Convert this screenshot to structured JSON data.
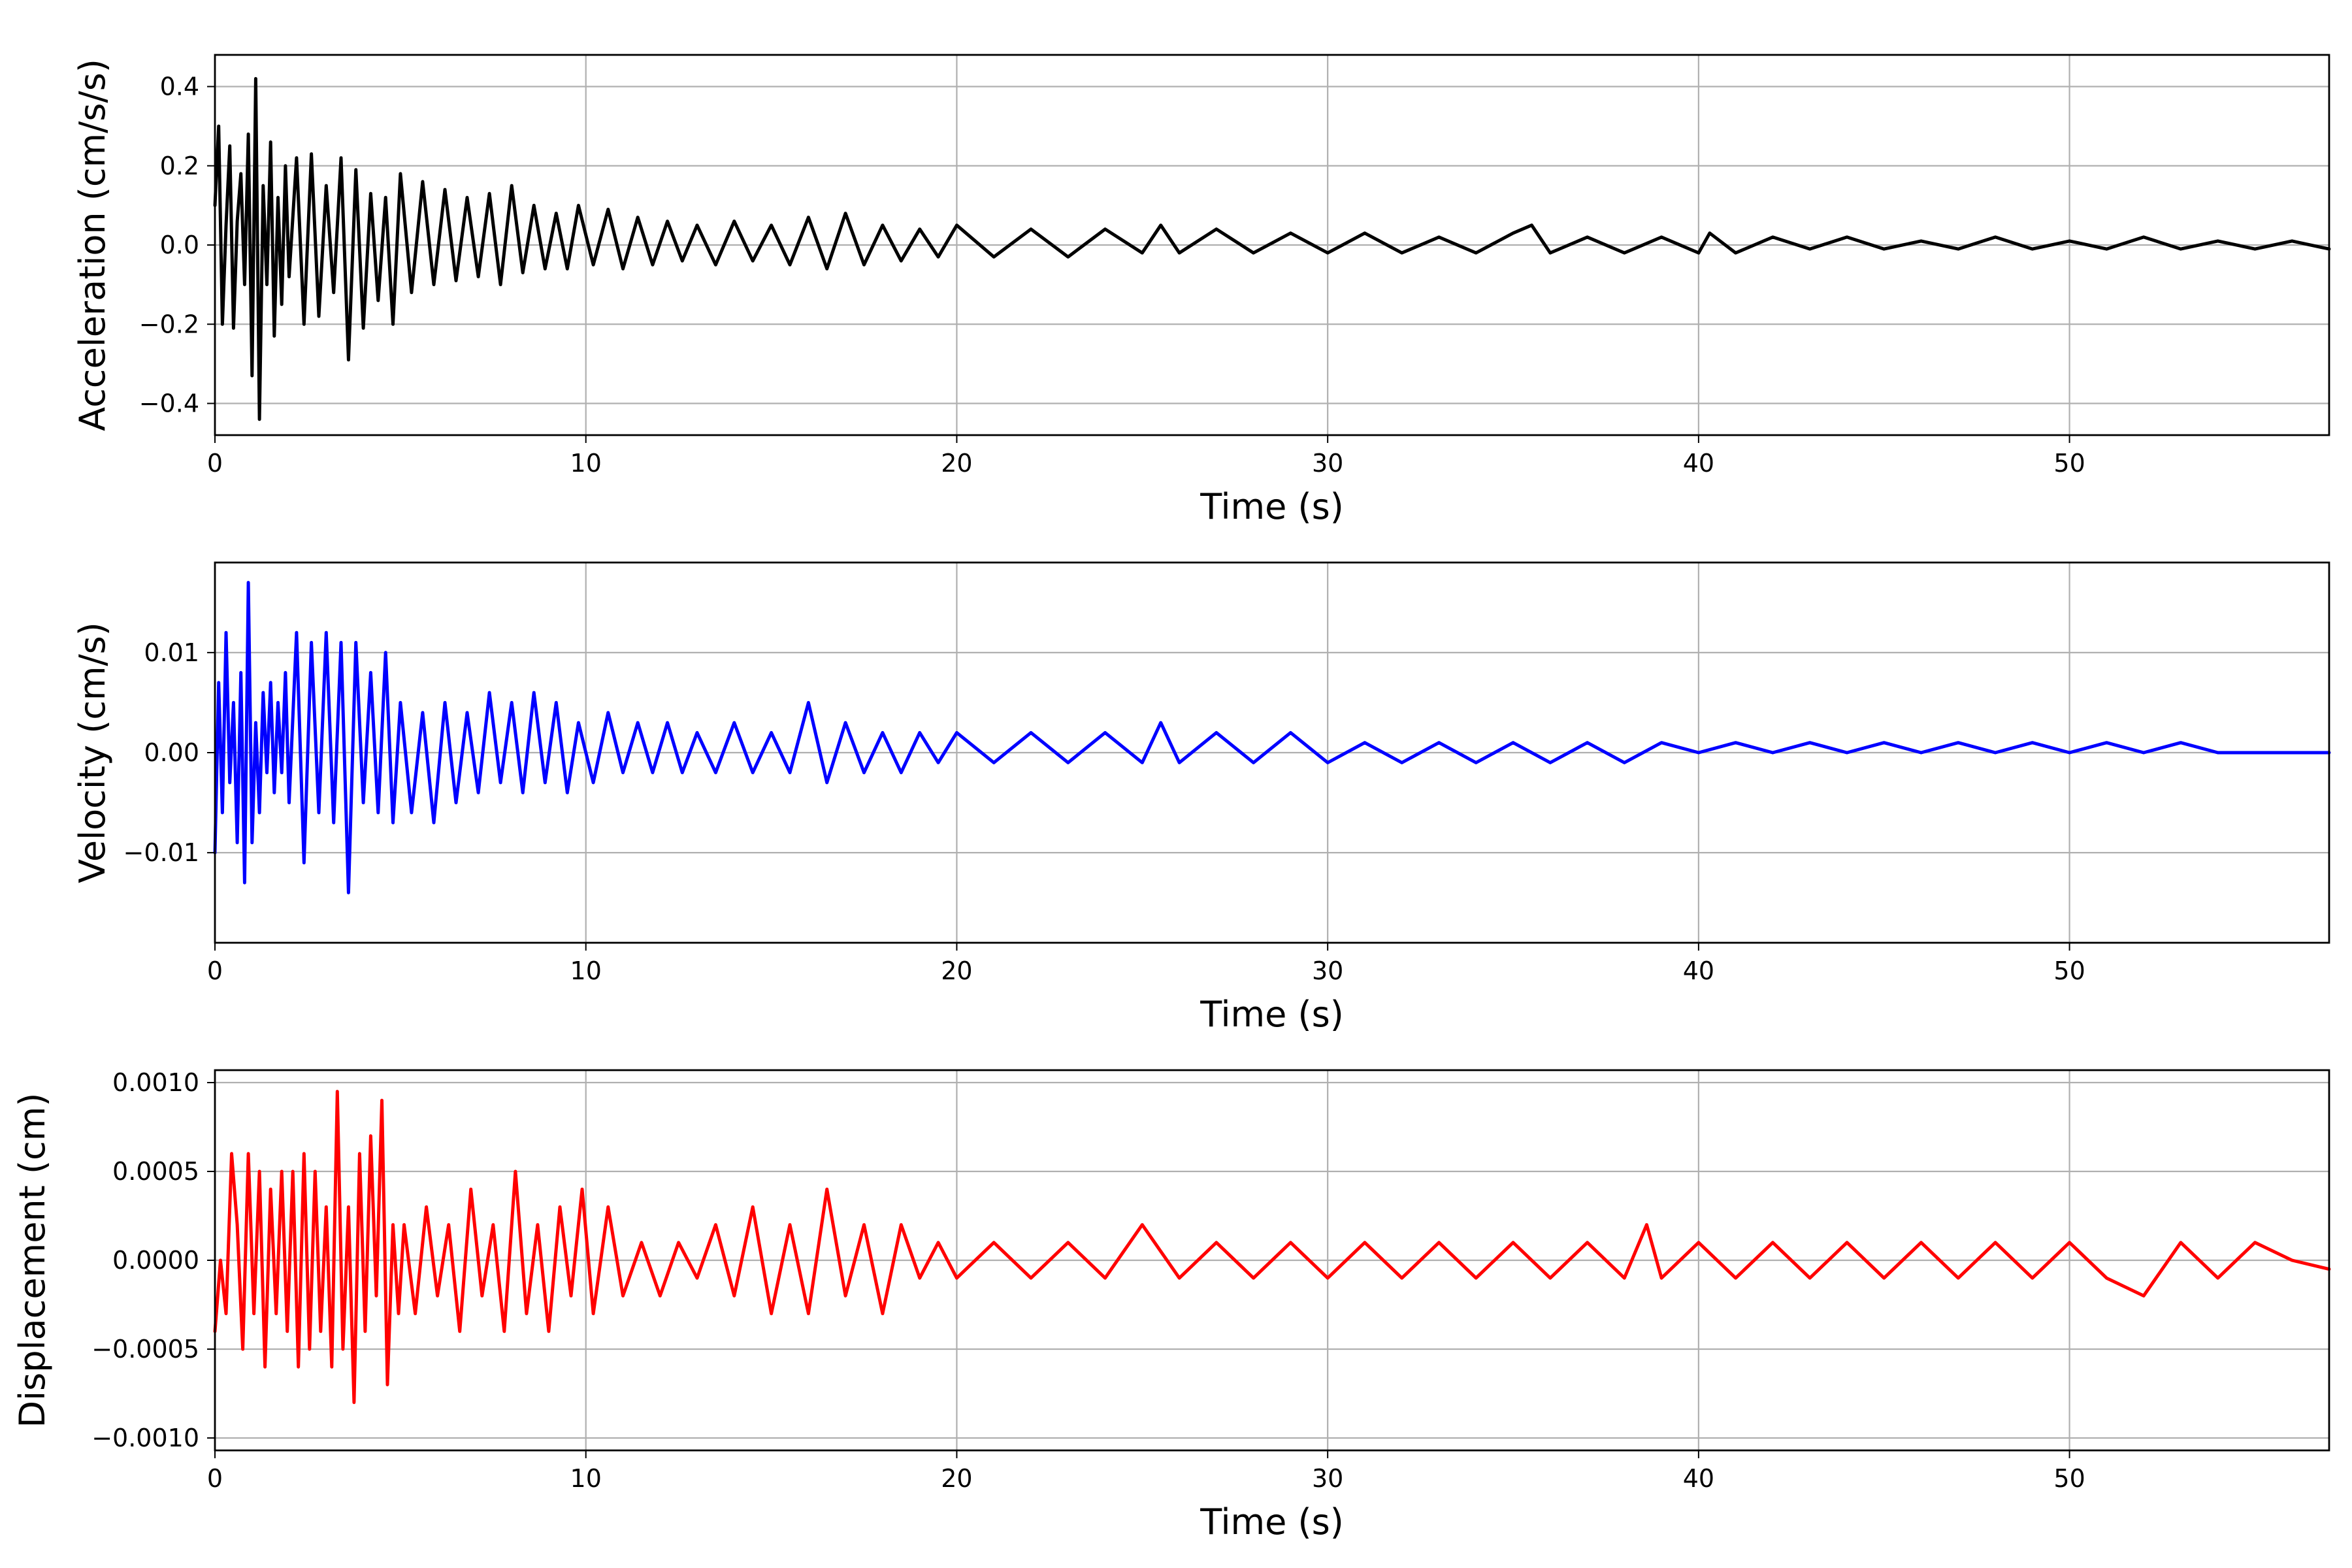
{
  "chart_data": [
    {
      "type": "line",
      "xlabel": "Time (s)",
      "ylabel": "Acceleration (cm/s/s)",
      "xlim": [
        0,
        57
      ],
      "ylim": [
        -0.48,
        0.48
      ],
      "xticks": [
        0,
        10,
        20,
        30,
        40,
        50
      ],
      "xtick_labels": [
        "0",
        "10",
        "20",
        "30",
        "40",
        "50"
      ],
      "yticks": [
        -0.4,
        -0.2,
        0.0,
        0.2,
        0.4
      ],
      "ytick_labels": [
        "−0.4",
        "−0.2",
        "0.0",
        "0.2",
        "0.4"
      ],
      "grid": true,
      "series": [
        {
          "color": "#000000",
          "x": [
            0,
            0.1,
            0.2,
            0.3,
            0.4,
            0.5,
            0.6,
            0.7,
            0.8,
            0.9,
            1.0,
            1.1,
            1.2,
            1.3,
            1.4,
            1.5,
            1.6,
            1.7,
            1.8,
            1.9,
            2.0,
            2.2,
            2.4,
            2.6,
            2.8,
            3.0,
            3.2,
            3.4,
            3.6,
            3.8,
            4.0,
            4.2,
            4.4,
            4.6,
            4.8,
            5.0,
            5.3,
            5.6,
            5.9,
            6.2,
            6.5,
            6.8,
            7.1,
            7.4,
            7.7,
            8.0,
            8.3,
            8.6,
            8.9,
            9.2,
            9.5,
            9.8,
            10.2,
            10.6,
            11.0,
            11.4,
            11.8,
            12.2,
            12.6,
            13.0,
            13.5,
            14.0,
            14.5,
            15.0,
            15.5,
            16.0,
            16.5,
            17.0,
            17.5,
            18.0,
            18.5,
            19.0,
            19.5,
            20.0,
            21.0,
            22.0,
            23.0,
            24.0,
            25.0,
            25.5,
            26.0,
            27.0,
            28.0,
            29.0,
            30.0,
            31.0,
            32.0,
            33.0,
            34.0,
            35.0,
            35.5,
            36.0,
            37.0,
            38.0,
            39.0,
            40.0,
            40.3,
            41.0,
            42.0,
            43.0,
            44.0,
            45.0,
            46.0,
            47.0,
            48.0,
            49.0,
            50.0,
            51.0,
            52.0,
            53.0,
            54.0,
            55.0,
            56.0,
            57.0
          ],
          "y": [
            0.1,
            0.3,
            -0.2,
            0.05,
            0.25,
            -0.21,
            0.06,
            0.18,
            -0.1,
            0.28,
            -0.33,
            0.42,
            -0.44,
            0.15,
            -0.1,
            0.26,
            -0.23,
            0.12,
            -0.15,
            0.2,
            -0.08,
            0.22,
            -0.2,
            0.23,
            -0.18,
            0.15,
            -0.12,
            0.22,
            -0.29,
            0.19,
            -0.21,
            0.13,
            -0.14,
            0.12,
            -0.2,
            0.18,
            -0.12,
            0.16,
            -0.1,
            0.14,
            -0.09,
            0.12,
            -0.08,
            0.13,
            -0.1,
            0.15,
            -0.07,
            0.1,
            -0.06,
            0.08,
            -0.06,
            0.1,
            -0.05,
            0.09,
            -0.06,
            0.07,
            -0.05,
            0.06,
            -0.04,
            0.05,
            -0.05,
            0.06,
            -0.04,
            0.05,
            -0.05,
            0.07,
            -0.06,
            0.08,
            -0.05,
            0.05,
            -0.04,
            0.04,
            -0.03,
            0.05,
            -0.03,
            0.04,
            -0.03,
            0.04,
            -0.02,
            0.05,
            -0.02,
            0.04,
            -0.02,
            0.03,
            -0.02,
            0.03,
            -0.02,
            0.02,
            -0.02,
            0.03,
            0.05,
            -0.02,
            0.02,
            -0.02,
            0.02,
            -0.02,
            0.03,
            -0.02,
            0.02,
            -0.01,
            0.02,
            -0.01,
            0.01,
            -0.01,
            0.02,
            -0.01,
            0.01,
            -0.01,
            0.02,
            -0.01,
            0.01,
            -0.01,
            0.01,
            -0.01
          ]
        }
      ]
    },
    {
      "type": "line",
      "xlabel": "Time (s)",
      "ylabel": "Velocity (cm/s)",
      "xlim": [
        0,
        57
      ],
      "ylim": [
        -0.019,
        0.019
      ],
      "xticks": [
        0,
        10,
        20,
        30,
        40,
        50
      ],
      "xtick_labels": [
        "0",
        "10",
        "20",
        "30",
        "40",
        "50"
      ],
      "yticks": [
        -0.01,
        0.0,
        0.01
      ],
      "ytick_labels": [
        "−0.01",
        "0.00",
        "0.01"
      ],
      "grid": true,
      "series": [
        {
          "color": "#0000ff",
          "x": [
            0,
            0.1,
            0.2,
            0.3,
            0.4,
            0.5,
            0.6,
            0.7,
            0.8,
            0.9,
            1.0,
            1.1,
            1.2,
            1.3,
            1.4,
            1.5,
            1.6,
            1.7,
            1.8,
            1.9,
            2.0,
            2.2,
            2.4,
            2.6,
            2.8,
            3.0,
            3.2,
            3.4,
            3.6,
            3.8,
            4.0,
            4.2,
            4.4,
            4.6,
            4.8,
            5.0,
            5.3,
            5.6,
            5.9,
            6.2,
            6.5,
            6.8,
            7.1,
            7.4,
            7.7,
            8.0,
            8.3,
            8.6,
            8.9,
            9.2,
            9.5,
            9.8,
            10.2,
            10.6,
            11.0,
            11.4,
            11.8,
            12.2,
            12.6,
            13.0,
            13.5,
            14.0,
            14.5,
            15.0,
            15.5,
            16.0,
            16.5,
            17.0,
            17.5,
            18.0,
            18.5,
            19.0,
            19.5,
            20.0,
            21.0,
            22.0,
            23.0,
            24.0,
            25.0,
            25.5,
            26.0,
            27.0,
            28.0,
            29.0,
            30.0,
            31.0,
            32.0,
            33.0,
            34.0,
            35.0,
            36.0,
            37.0,
            38.0,
            39.0,
            40.0,
            41.0,
            42.0,
            43.0,
            44.0,
            45.0,
            46.0,
            47.0,
            48.0,
            49.0,
            50.0,
            51.0,
            52.0,
            53.0,
            54.0,
            55.0,
            56.0,
            57.0
          ],
          "y": [
            -0.01,
            0.007,
            -0.006,
            0.012,
            -0.003,
            0.005,
            -0.009,
            0.008,
            -0.013,
            0.017,
            -0.009,
            0.003,
            -0.006,
            0.006,
            -0.002,
            0.007,
            -0.004,
            0.005,
            -0.002,
            0.008,
            -0.005,
            0.012,
            -0.011,
            0.011,
            -0.006,
            0.012,
            -0.007,
            0.011,
            -0.014,
            0.011,
            -0.005,
            0.008,
            -0.006,
            0.01,
            -0.007,
            0.005,
            -0.006,
            0.004,
            -0.007,
            0.005,
            -0.005,
            0.004,
            -0.004,
            0.006,
            -0.003,
            0.005,
            -0.004,
            0.006,
            -0.003,
            0.005,
            -0.004,
            0.003,
            -0.003,
            0.004,
            -0.002,
            0.003,
            -0.002,
            0.003,
            -0.002,
            0.002,
            -0.002,
            0.003,
            -0.002,
            0.002,
            -0.002,
            0.005,
            -0.003,
            0.003,
            -0.002,
            0.002,
            -0.002,
            0.002,
            -0.001,
            0.002,
            -0.001,
            0.002,
            -0.001,
            0.002,
            -0.001,
            0.003,
            -0.001,
            0.002,
            -0.001,
            0.002,
            -0.001,
            0.001,
            -0.001,
            0.001,
            -0.001,
            0.001,
            -0.001,
            0.001,
            -0.001,
            0.001,
            0.0,
            0.001,
            0.0,
            0.001,
            0.0,
            0.001,
            0.0,
            0.001,
            0.0,
            0.001,
            0.0,
            0.001,
            0.0,
            0.001,
            0.0,
            0.0,
            0.0,
            0.0
          ]
        }
      ]
    },
    {
      "type": "line",
      "xlabel": "Time (s)",
      "ylabel": "Displacement (cm)",
      "xlim": [
        0,
        57
      ],
      "ylim": [
        -0.00107,
        0.00107
      ],
      "xticks": [
        0,
        10,
        20,
        30,
        40,
        50
      ],
      "xtick_labels": [
        "0",
        "10",
        "20",
        "30",
        "40",
        "50"
      ],
      "yticks": [
        -0.001,
        -0.0005,
        0.0,
        0.0005,
        0.001
      ],
      "ytick_labels": [
        "−0.0010",
        "−0.0005",
        "0.0000",
        "0.0005",
        "0.0010"
      ],
      "grid": true,
      "series": [
        {
          "color": "#ff0000",
          "x": [
            0,
            0.15,
            0.3,
            0.45,
            0.6,
            0.75,
            0.9,
            1.05,
            1.2,
            1.35,
            1.5,
            1.65,
            1.8,
            1.95,
            2.1,
            2.25,
            2.4,
            2.55,
            2.7,
            2.85,
            3.0,
            3.15,
            3.3,
            3.45,
            3.6,
            3.75,
            3.9,
            4.05,
            4.2,
            4.35,
            4.5,
            4.65,
            4.8,
            4.95,
            5.1,
            5.4,
            5.7,
            6.0,
            6.3,
            6.6,
            6.9,
            7.2,
            7.5,
            7.8,
            8.1,
            8.4,
            8.7,
            9.0,
            9.3,
            9.6,
            9.9,
            10.2,
            10.6,
            11.0,
            11.5,
            12.0,
            12.5,
            13.0,
            13.5,
            14.0,
            14.5,
            15.0,
            15.5,
            16.0,
            16.5,
            17.0,
            17.5,
            18.0,
            18.5,
            19.0,
            19.5,
            20.0,
            21.0,
            22.0,
            23.0,
            24.0,
            25.0,
            26.0,
            27.0,
            28.0,
            29.0,
            30.0,
            31.0,
            32.0,
            33.0,
            34.0,
            35.0,
            36.0,
            37.0,
            38.0,
            38.6,
            39.0,
            40.0,
            41.0,
            42.0,
            43.0,
            44.0,
            45.0,
            46.0,
            47.0,
            48.0,
            49.0,
            50.0,
            51.0,
            52.0,
            53.0,
            54.0,
            55.0,
            56.0,
            57.0
          ],
          "y": [
            -0.0004,
            0.0,
            -0.0003,
            0.0006,
            0.0002,
            -0.0005,
            0.0006,
            -0.0003,
            0.0005,
            -0.0006,
            0.0004,
            -0.0003,
            0.0005,
            -0.0004,
            0.0005,
            -0.0006,
            0.0006,
            -0.0005,
            0.0005,
            -0.0004,
            0.0003,
            -0.0006,
            0.00095,
            -0.0005,
            0.0003,
            -0.0008,
            0.0006,
            -0.0004,
            0.0007,
            -0.0002,
            0.0009,
            -0.0007,
            0.0002,
            -0.0003,
            0.0002,
            -0.0003,
            0.0003,
            -0.0002,
            0.0002,
            -0.0004,
            0.0004,
            -0.0002,
            0.0002,
            -0.0004,
            0.0005,
            -0.0003,
            0.0002,
            -0.0004,
            0.0003,
            -0.0002,
            0.0004,
            -0.0003,
            0.0003,
            -0.0002,
            0.0001,
            -0.0002,
            0.0001,
            -0.0001,
            0.0002,
            -0.0002,
            0.0003,
            -0.0003,
            0.0002,
            -0.0003,
            0.0004,
            -0.0002,
            0.0002,
            -0.0003,
            0.0002,
            -0.0001,
            0.0001,
            -0.0001,
            0.0001,
            -0.0001,
            0.0001,
            -0.0001,
            0.0002,
            -0.0001,
            0.0001,
            -0.0001,
            0.0001,
            -0.0001,
            0.0001,
            -0.0001,
            0.0001,
            -0.0001,
            0.0001,
            -0.0001,
            0.0001,
            -0.0001,
            0.0002,
            -0.0001,
            0.0001,
            -0.0001,
            0.0001,
            -0.0001,
            0.0001,
            -0.0001,
            0.0001,
            -0.0001,
            0.0001,
            -0.0001,
            0.0001,
            -0.0001,
            -0.0002,
            0.0001,
            -0.0001,
            0.0001,
            0.0,
            -5e-05
          ]
        }
      ]
    }
  ]
}
